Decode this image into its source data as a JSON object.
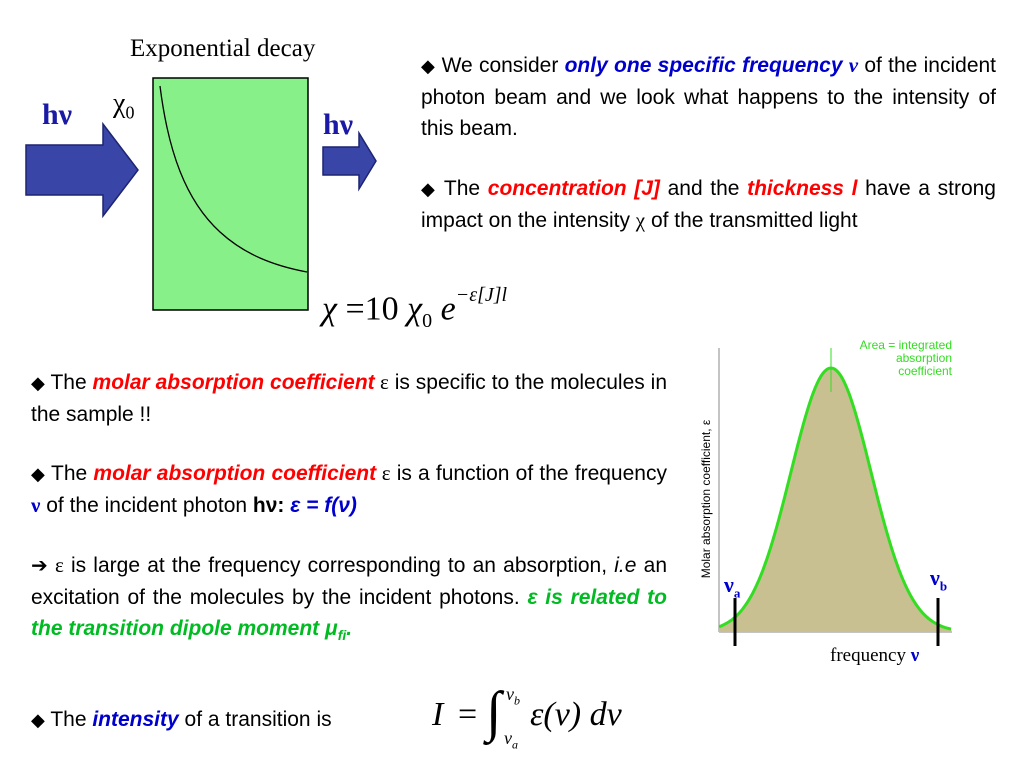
{
  "slide": {
    "diagram": {
      "title": "Exponential decay",
      "chi0_symbol": "χ",
      "chi0_sub": "0",
      "hv_in": "hν",
      "hv_out": "hν"
    },
    "para1": {
      "bullet": "◆",
      "t1": "We consider ",
      "em1": "only one specific frequency ",
      "nu": "ν",
      "t2": " of the incident photon beam and we look what happens to the intensity of this beam."
    },
    "para2": {
      "bullet": "◆",
      "t1": "The ",
      "em1": "concentration [J]",
      "t2": " and the ",
      "em2": "thickness l",
      "t3": " have a strong impact on the intensity ",
      "chi": "χ",
      "t4": " of the transmitted light"
    },
    "equation1": {
      "chi": "χ",
      "eq": "=",
      "ten": "10",
      "chi0": "χ",
      "chi0_sub": "0",
      "e": "e",
      "exponent": "−ε[J]l"
    },
    "para3": {
      "bullet": "◆",
      "t1": "The ",
      "em1": "molar absorption coefficient",
      "eps": " ε",
      "t2": " is specific to the molecules in the sample !!"
    },
    "para4": {
      "bullet": "◆",
      "t1": "The ",
      "em1": "molar absorption coefficient",
      "eps": " ε",
      "t2": " is a function of the frequency ",
      "nu": "ν",
      "t3": " of the incident photon ",
      "hv": "hν:",
      "fn": " ε = f(ν)"
    },
    "para5": {
      "arrow": "➔",
      "eps": "ε",
      "t1": " is large at the frequency corresponding to an absorption, ",
      "ie": "i.e",
      "t2": " an excitation of the molecules by the incident photons. ",
      "em1": "ε is related to the transition dipole moment ",
      "mu": "μ",
      "mu_sub": "fi",
      "dot": "."
    },
    "para6": {
      "bullet": "◆",
      "t1": "The ",
      "em1": "intensity",
      "t2": " of a transition is"
    },
    "equation2": {
      "I": "I",
      "eq": "=",
      "integral": "∫",
      "upper": "ν",
      "upper_sub": "b",
      "lower": "ν",
      "lower_sub": "a",
      "body": "ε(ν) dν"
    },
    "plot": {
      "ylabel": "Molar absorption coefficient, ε",
      "xlabel": "frequency",
      "xlabel_nu": "ν",
      "area_label_1": "Area  =  integrated",
      "area_label_2": "absorption",
      "area_label_3": "coefficient",
      "nu_a": "ν",
      "nu_a_sub": "a",
      "nu_b": "ν",
      "nu_b_sub": "b",
      "curve_color": "#33dd22",
      "fill_color": "#c9c092"
    }
  }
}
